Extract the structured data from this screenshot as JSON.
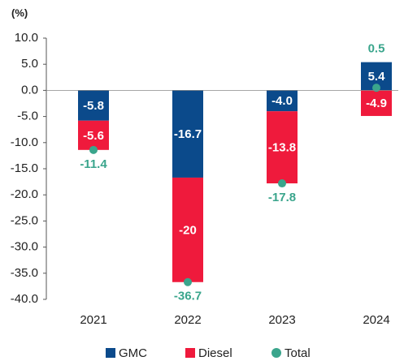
{
  "chart_data": {
    "type": "bar",
    "stacked": true,
    "y_label": "(%)",
    "categories": [
      "2021",
      "2022",
      "2023",
      "2024"
    ],
    "series": [
      {
        "name": "GMC",
        "color": "#0b4a8b",
        "mark": "bar",
        "values": [
          -5.8,
          -16.7,
          -4.0,
          5.4
        ],
        "value_labels": [
          "-5.8",
          "-16.7",
          "-4.0",
          "5.4"
        ]
      },
      {
        "name": "Diesel",
        "color": "#ef1a3c",
        "mark": "bar",
        "values": [
          -5.6,
          -20,
          -13.8,
          -4.9
        ]
      },
      {
        "name": "Total",
        "color": "#3aa58c",
        "mark": "dot",
        "values": [
          -11.4,
          -36.7,
          -17.8,
          0.5
        ]
      }
    ],
    "ylim": [
      -40,
      10
    ],
    "yticks": [
      {
        "value": 10,
        "label": "10.0"
      },
      {
        "value": 5,
        "label": "5.0"
      },
      {
        "value": 0,
        "label": "0.0"
      },
      {
        "value": -5,
        "label": "-5.0"
      },
      {
        "value": -10,
        "label": "-10.0"
      },
      {
        "value": -15,
        "label": "-15.0"
      },
      {
        "value": -20,
        "label": "-20.0"
      },
      {
        "value": -25,
        "label": "-25.0"
      },
      {
        "value": -30,
        "label": "-30.0"
      },
      {
        "value": -35,
        "label": "-35.0"
      },
      {
        "value": -40,
        "label": "-40.0"
      }
    ],
    "grid": false,
    "legend": "bottom"
  }
}
